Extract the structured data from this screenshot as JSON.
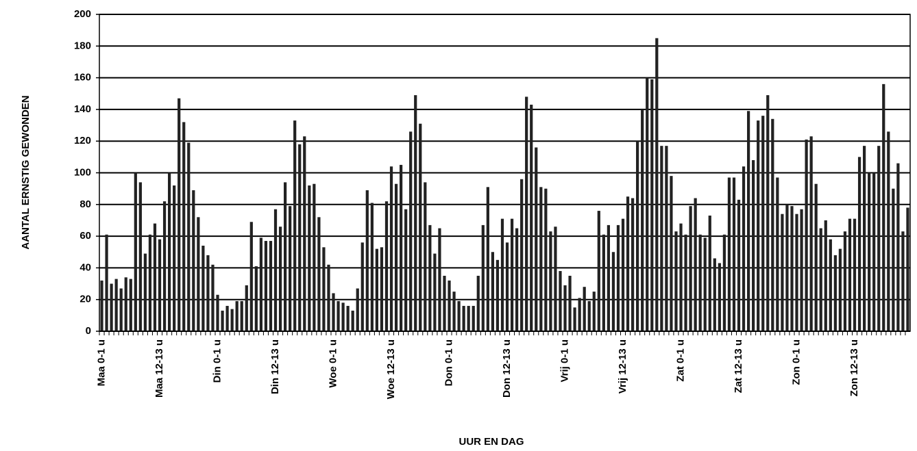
{
  "chart_data": {
    "type": "bar",
    "x_label": "UUR EN DAG",
    "y_label": "AANTAL ERNSTIG GEWONDEN",
    "categories": [
      "Maa 0-1 u",
      null,
      null,
      null,
      null,
      null,
      null,
      null,
      null,
      null,
      null,
      null,
      "Maa 12-13 u",
      null,
      null,
      null,
      null,
      null,
      null,
      null,
      null,
      null,
      null,
      null,
      "Din 0-1 u",
      null,
      null,
      null,
      null,
      null,
      null,
      null,
      null,
      null,
      null,
      null,
      "Din 12-13 u",
      null,
      null,
      null,
      null,
      null,
      null,
      null,
      null,
      null,
      null,
      null,
      "Woe 0-1 u",
      null,
      null,
      null,
      null,
      null,
      null,
      null,
      null,
      null,
      null,
      null,
      "Woe 12-13 u",
      null,
      null,
      null,
      null,
      null,
      null,
      null,
      null,
      null,
      null,
      null,
      "Don 0-1 u",
      null,
      null,
      null,
      null,
      null,
      null,
      null,
      null,
      null,
      null,
      null,
      "Don 12-13 u",
      null,
      null,
      null,
      null,
      null,
      null,
      null,
      null,
      null,
      null,
      null,
      "Vrij 0-1 u",
      null,
      null,
      null,
      null,
      null,
      null,
      null,
      null,
      null,
      null,
      null,
      "Vrij 12-13 u",
      null,
      null,
      null,
      null,
      null,
      null,
      null,
      null,
      null,
      null,
      null,
      "Zat 0-1 u",
      null,
      null,
      null,
      null,
      null,
      null,
      null,
      null,
      null,
      null,
      null,
      "Zat 12-13 u",
      null,
      null,
      null,
      null,
      null,
      null,
      null,
      null,
      null,
      null,
      null,
      "Zon 0-1 u",
      null,
      null,
      null,
      null,
      null,
      null,
      null,
      null,
      null,
      null,
      null,
      "Zon 12-13 u",
      null,
      null,
      null,
      null,
      null,
      null,
      null,
      null,
      null,
      null,
      null
    ],
    "values": [
      32,
      61,
      30,
      33,
      27,
      34,
      33,
      100,
      94,
      49,
      61,
      68,
      58,
      82,
      100,
      92,
      147,
      132,
      119,
      89,
      72,
      54,
      48,
      42,
      23,
      13,
      16,
      14,
      19,
      19,
      29,
      69,
      41,
      59,
      57,
      57,
      77,
      66,
      94,
      79,
      133,
      118,
      123,
      92,
      93,
      72,
      53,
      42,
      24,
      19,
      18,
      16,
      13,
      27,
      56,
      89,
      81,
      52,
      53,
      82,
      104,
      93,
      105,
      77,
      126,
      149,
      131,
      94,
      67,
      49,
      65,
      35,
      32,
      25,
      19,
      16,
      16,
      16,
      35,
      67,
      91,
      50,
      45,
      71,
      56,
      71,
      65,
      96,
      148,
      143,
      116,
      91,
      90,
      63,
      66,
      38,
      29,
      35,
      15,
      21,
      28,
      19,
      25,
      76,
      61,
      67,
      50,
      67,
      71,
      85,
      84,
      120,
      140,
      160,
      159,
      185,
      117,
      117,
      98,
      63,
      68,
      61,
      79,
      84,
      61,
      59,
      73,
      46,
      43,
      61,
      97,
      97,
      83,
      104,
      139,
      108,
      133,
      136,
      149,
      134,
      97,
      74,
      80,
      79,
      74,
      77,
      121,
      123,
      93,
      65,
      70,
      58,
      48,
      52,
      63,
      71,
      71,
      110,
      117,
      100,
      100,
      117,
      156,
      126,
      90,
      106,
      63,
      78
    ],
    "color": "#222222",
    "ylim": [
      0,
      200
    ],
    "yticks": [
      0,
      20,
      40,
      60,
      80,
      100,
      120,
      140,
      160,
      180,
      200
    ],
    "grid": true
  }
}
